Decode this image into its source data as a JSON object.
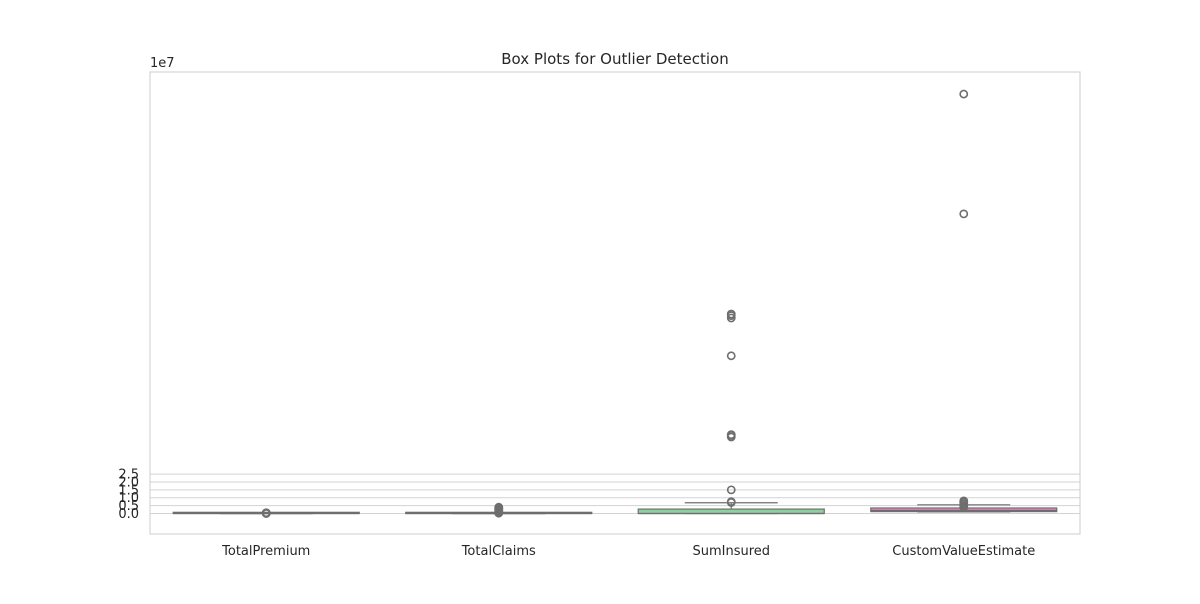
{
  "chart_data": {
    "type": "box",
    "title": "Box Plots for Outlier Detection",
    "xlabel": "",
    "ylabel": "",
    "y_offset_label": "1e7",
    "ylim": [
      -1.3,
      28.0
    ],
    "y_units_note": "",
    "yticks": [
      0.0,
      0.5,
      1.0,
      1.5,
      2.0,
      2.5
    ],
    "ytick_labels": [
      "0.0",
      "0.5",
      "1.0",
      "1.5",
      "2.0",
      "2.5"
    ],
    "grid": true,
    "categories": [
      "TotalPremium",
      "TotalClaims",
      "SumInsured",
      "CustomValueEstimate"
    ],
    "colors": [
      "#66c2a5",
      "#fc8d62",
      "#8fd19e",
      "#e78ac3"
    ],
    "box_edge_color": "#6e6e6e",
    "boxes": [
      {
        "name": "TotalPremium",
        "min": 0.0,
        "q1": 0.0,
        "median": 0.0,
        "q3": 0.001,
        "max": 0.002,
        "outliers": [
          0.005,
          0.01,
          0.015,
          0.02,
          0.03,
          0.04,
          0.05
        ]
      },
      {
        "name": "TotalClaims",
        "min": 0.0,
        "q1": 0.0,
        "median": 0.0,
        "q3": 0.0,
        "max": 0.0,
        "outliers": [
          0.02,
          0.05,
          0.08,
          0.1,
          0.14,
          0.18,
          0.22,
          0.26,
          0.3,
          0.35,
          0.4
        ]
      },
      {
        "name": "SumInsured",
        "min": 0.0,
        "q1": 0.0,
        "median": 0.0,
        "q3": 0.28,
        "max": 0.68,
        "outliers": [
          0.7,
          0.75,
          1.5,
          4.85,
          4.95,
          5.0,
          10.0,
          12.4,
          12.55,
          12.65
        ]
      },
      {
        "name": "CustomValueEstimate",
        "min": 0.1,
        "q1": 0.12,
        "median": 0.2,
        "q3": 0.35,
        "max": 0.55,
        "outliers": [
          0.4,
          0.5,
          0.6,
          0.7,
          0.75,
          0.8,
          19.0,
          26.6
        ]
      }
    ]
  }
}
